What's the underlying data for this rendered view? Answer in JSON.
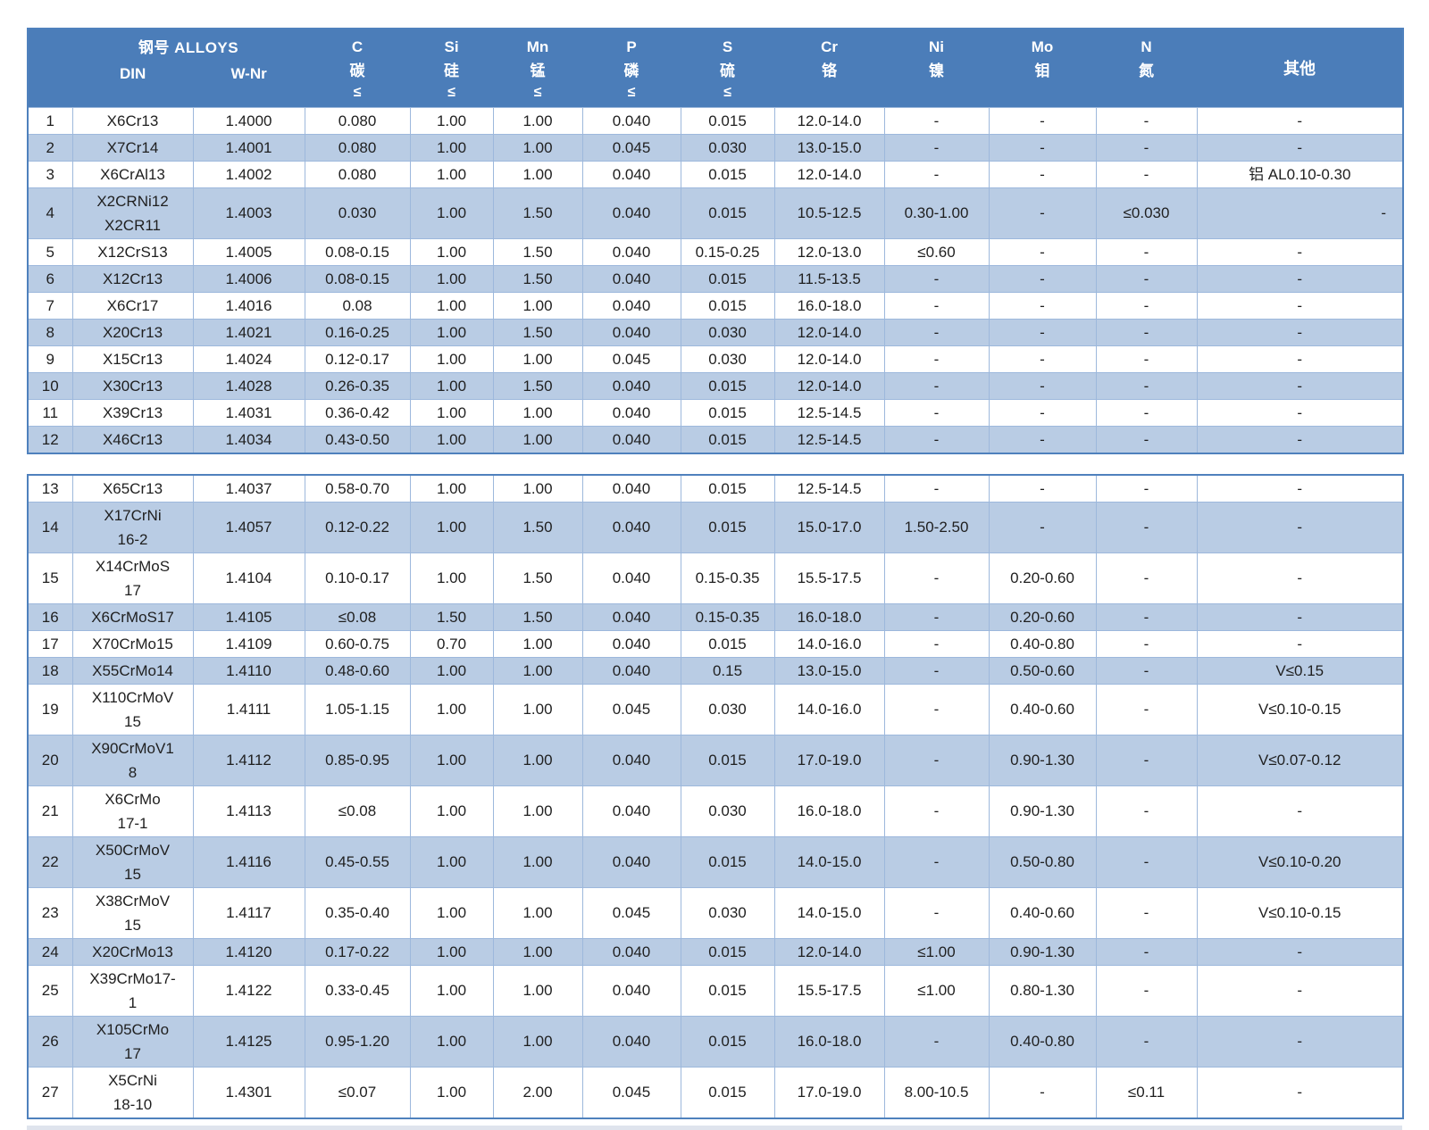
{
  "header": {
    "alloys_label": "钢号 ALLOYS",
    "din_label": "DIN",
    "wnr_label": "W-Nr",
    "columns": [
      {
        "symbol": "C",
        "cn": "碳",
        "limit": "≤"
      },
      {
        "symbol": "Si",
        "cn": "硅",
        "limit": "≤"
      },
      {
        "symbol": "Mn",
        "cn": "锰",
        "limit": "≤"
      },
      {
        "symbol": "P",
        "cn": "磷",
        "limit": "≤"
      },
      {
        "symbol": "S",
        "cn": "硫",
        "limit": "≤"
      },
      {
        "symbol": "Cr",
        "cn": "铬",
        "limit": ""
      },
      {
        "symbol": "Ni",
        "cn": "镍",
        "limit": ""
      },
      {
        "symbol": "Mo",
        "cn": "钼",
        "limit": ""
      },
      {
        "symbol": "N",
        "cn": "氮",
        "limit": ""
      },
      {
        "symbol": "其他",
        "cn": "",
        "limit": ""
      }
    ]
  },
  "colors": {
    "header_bg": "#4b7db9",
    "band_bg": "#b9cce4",
    "border": "#9db8dc",
    "outer_border": "#4f81bd",
    "text": "#1f1f1f",
    "header_text": "#ffffff"
  },
  "sections": [
    {
      "rows": [
        {
          "no": 1,
          "din": [
            "X6Cr13"
          ],
          "wnr": "1.4000",
          "c": "0.080",
          "si": "1.00",
          "mn": "1.00",
          "p": "0.040",
          "s": "0.015",
          "cr": "12.0-14.0",
          "ni": "-",
          "mo": "-",
          "n": "-",
          "other": "-"
        },
        {
          "no": 2,
          "din": [
            "X7Cr14"
          ],
          "wnr": "1.4001",
          "c": "0.080",
          "si": "1.00",
          "mn": "1.00",
          "p": "0.045",
          "s": "0.030",
          "cr": "13.0-15.0",
          "ni": "-",
          "mo": "-",
          "n": "-",
          "other": "-"
        },
        {
          "no": 3,
          "din": [
            "X6CrAl13"
          ],
          "wnr": "1.4002",
          "c": "0.080",
          "si": "1.00",
          "mn": "1.00",
          "p": "0.040",
          "s": "0.015",
          "cr": "12.0-14.0",
          "ni": "-",
          "mo": "-",
          "n": "-",
          "other": "铝 AL0.10-0.30"
        },
        {
          "no": 4,
          "din": [
            "X2CRNi12",
            "X2CR11"
          ],
          "wnr": "1.4003",
          "c": "0.030",
          "si": "1.00",
          "mn": "1.50",
          "p": "0.040",
          "s": "0.015",
          "cr": "10.5-12.5",
          "ni": "0.30-1.00",
          "mo": "-",
          "n": "≤0.030",
          "other": "-",
          "other_align": "right"
        },
        {
          "no": 5,
          "din": [
            "X12CrS13"
          ],
          "wnr": "1.4005",
          "c": "0.08-0.15",
          "si": "1.00",
          "mn": "1.50",
          "p": "0.040",
          "s": "0.15-0.25",
          "cr": "12.0-13.0",
          "ni": "≤0.60",
          "mo": "-",
          "n": "-",
          "other": "-"
        },
        {
          "no": 6,
          "din": [
            "X12Cr13"
          ],
          "wnr": "1.4006",
          "c": "0.08-0.15",
          "si": "1.00",
          "mn": "1.50",
          "p": "0.040",
          "s": "0.015",
          "cr": "11.5-13.5",
          "ni": "-",
          "mo": "-",
          "n": "-",
          "other": "-"
        },
        {
          "no": 7,
          "din": [
            "X6Cr17"
          ],
          "wnr": "1.4016",
          "c": "0.08",
          "si": "1.00",
          "mn": "1.00",
          "p": "0.040",
          "s": "0.015",
          "cr": "16.0-18.0",
          "ni": "-",
          "mo": "-",
          "n": "-",
          "other": "-"
        },
        {
          "no": 8,
          "din": [
            "X20Cr13"
          ],
          "wnr": "1.4021",
          "c": "0.16-0.25",
          "si": "1.00",
          "mn": "1.50",
          "p": "0.040",
          "s": "0.030",
          "cr": "12.0-14.0",
          "ni": "-",
          "mo": "-",
          "n": "-",
          "other": "-"
        },
        {
          "no": 9,
          "din": [
            "X15Cr13"
          ],
          "wnr": "1.4024",
          "c": "0.12-0.17",
          "si": "1.00",
          "mn": "1.00",
          "p": "0.045",
          "s": "0.030",
          "cr": "12.0-14.0",
          "ni": "-",
          "mo": "-",
          "n": "-",
          "other": "-"
        },
        {
          "no": 10,
          "din": [
            "X30Cr13"
          ],
          "wnr": "1.4028",
          "c": "0.26-0.35",
          "si": "1.00",
          "mn": "1.50",
          "p": "0.040",
          "s": "0.015",
          "cr": "12.0-14.0",
          "ni": "-",
          "mo": "-",
          "n": "-",
          "other": "-"
        },
        {
          "no": 11,
          "din": [
            "X39Cr13"
          ],
          "wnr": "1.4031",
          "c": "0.36-0.42",
          "si": "1.00",
          "mn": "1.00",
          "p": "0.040",
          "s": "0.015",
          "cr": "12.5-14.5",
          "ni": "-",
          "mo": "-",
          "n": "-",
          "other": "-"
        },
        {
          "no": 12,
          "din": [
            "X46Cr13"
          ],
          "wnr": "1.4034",
          "c": "0.43-0.50",
          "si": "1.00",
          "mn": "1.00",
          "p": "0.040",
          "s": "0.015",
          "cr": "12.5-14.5",
          "ni": "-",
          "mo": "-",
          "n": "-",
          "other": "-"
        }
      ]
    },
    {
      "rows": [
        {
          "no": 13,
          "din": [
            "X65Cr13"
          ],
          "wnr": "1.4037",
          "c": "0.58-0.70",
          "si": "1.00",
          "mn": "1.00",
          "p": "0.040",
          "s": "0.015",
          "cr": "12.5-14.5",
          "ni": "-",
          "mo": "-",
          "n": "-",
          "other": "-"
        },
        {
          "no": 14,
          "din": [
            "X17CrNi",
            "16-2"
          ],
          "wnr": "1.4057",
          "c": "0.12-0.22",
          "si": "1.00",
          "mn": "1.50",
          "p": "0.040",
          "s": "0.015",
          "cr": "15.0-17.0",
          "ni": "1.50-2.50",
          "mo": "-",
          "n": "-",
          "other": "-"
        },
        {
          "no": 15,
          "din": [
            "X14CrMoS",
            "17"
          ],
          "wnr": "1.4104",
          "c": "0.10-0.17",
          "si": "1.00",
          "mn": "1.50",
          "p": "0.040",
          "s": "0.15-0.35",
          "cr": "15.5-17.5",
          "ni": "-",
          "mo": "0.20-0.60",
          "n": "-",
          "other": "-"
        },
        {
          "no": 16,
          "din": [
            "X6CrMoS17"
          ],
          "wnr": "1.4105",
          "c": "≤0.08",
          "si": "1.50",
          "mn": "1.50",
          "p": "0.040",
          "s": "0.15-0.35",
          "cr": "16.0-18.0",
          "ni": "-",
          "mo": "0.20-0.60",
          "n": "-",
          "other": "-"
        },
        {
          "no": 17,
          "din": [
            "X70CrMo15"
          ],
          "wnr": "1.4109",
          "c": "0.60-0.75",
          "si": "0.70",
          "mn": "1.00",
          "p": "0.040",
          "s": "0.015",
          "cr": "14.0-16.0",
          "ni": "-",
          "mo": "0.40-0.80",
          "n": "-",
          "other": "-"
        },
        {
          "no": 18,
          "din": [
            "X55CrMo14"
          ],
          "wnr": "1.4110",
          "c": "0.48-0.60",
          "si": "1.00",
          "mn": "1.00",
          "p": "0.040",
          "s": "0.15",
          "cr": "13.0-15.0",
          "ni": "-",
          "mo": "0.50-0.60",
          "n": "-",
          "other": "V≤0.15"
        },
        {
          "no": 19,
          "din": [
            "X110CrMoV",
            "15"
          ],
          "wnr": "1.4111",
          "c": "1.05-1.15",
          "si": "1.00",
          "mn": "1.00",
          "p": "0.045",
          "s": "0.030",
          "cr": "14.0-16.0",
          "ni": "-",
          "mo": "0.40-0.60",
          "n": "-",
          "other": "V≤0.10-0.15"
        },
        {
          "no": 20,
          "din": [
            "X90CrMoV1",
            "8"
          ],
          "wnr": "1.4112",
          "c": "0.85-0.95",
          "si": "1.00",
          "mn": "1.00",
          "p": "0.040",
          "s": "0.015",
          "cr": "17.0-19.0",
          "ni": "-",
          "mo": "0.90-1.30",
          "n": "-",
          "other": "V≤0.07-0.12"
        },
        {
          "no": 21,
          "din": [
            "X6CrMo",
            "17-1"
          ],
          "wnr": "1.4113",
          "c": "≤0.08",
          "si": "1.00",
          "mn": "1.00",
          "p": "0.040",
          "s": "0.030",
          "cr": "16.0-18.0",
          "ni": "-",
          "mo": "0.90-1.30",
          "n": "-",
          "other": "-"
        },
        {
          "no": 22,
          "din": [
            "X50CrMoV",
            "15"
          ],
          "wnr": "1.4116",
          "c": "0.45-0.55",
          "si": "1.00",
          "mn": "1.00",
          "p": "0.040",
          "s": "0.015",
          "cr": "14.0-15.0",
          "ni": "-",
          "mo": "0.50-0.80",
          "n": "-",
          "other": "V≤0.10-0.20"
        },
        {
          "no": 23,
          "din": [
            "X38CrMoV",
            "15"
          ],
          "wnr": "1.4117",
          "c": "0.35-0.40",
          "si": "1.00",
          "mn": "1.00",
          "p": "0.045",
          "s": "0.030",
          "cr": "14.0-15.0",
          "ni": "-",
          "mo": "0.40-0.60",
          "n": "-",
          "other": "V≤0.10-0.15"
        },
        {
          "no": 24,
          "din": [
            "X20CrMo13"
          ],
          "wnr": "1.4120",
          "c": "0.17-0.22",
          "si": "1.00",
          "mn": "1.00",
          "p": "0.040",
          "s": "0.015",
          "cr": "12.0-14.0",
          "ni": "≤1.00",
          "mo": "0.90-1.30",
          "n": "-",
          "other": "-"
        },
        {
          "no": 25,
          "din": [
            "X39CrMo17-",
            "1"
          ],
          "wnr": "1.4122",
          "c": "0.33-0.45",
          "si": "1.00",
          "mn": "1.00",
          "p": "0.040",
          "s": "0.015",
          "cr": "15.5-17.5",
          "ni": "≤1.00",
          "mo": "0.80-1.30",
          "n": "-",
          "other": "-"
        },
        {
          "no": 26,
          "din": [
            "X105CrMo",
            "17"
          ],
          "wnr": "1.4125",
          "c": "0.95-1.20",
          "si": "1.00",
          "mn": "1.00",
          "p": "0.040",
          "s": "0.015",
          "cr": "16.0-18.0",
          "ni": "-",
          "mo": "0.40-0.80",
          "n": "-",
          "other": "-"
        },
        {
          "no": 27,
          "din": [
            "X5CrNi",
            "18-10"
          ],
          "wnr": "1.4301",
          "c": "≤0.07",
          "si": "1.00",
          "mn": "2.00",
          "p": "0.045",
          "s": "0.015",
          "cr": "17.0-19.0",
          "ni": "8.00-10.5",
          "mo": "-",
          "n": "≤0.11",
          "other": "-"
        }
      ]
    }
  ]
}
